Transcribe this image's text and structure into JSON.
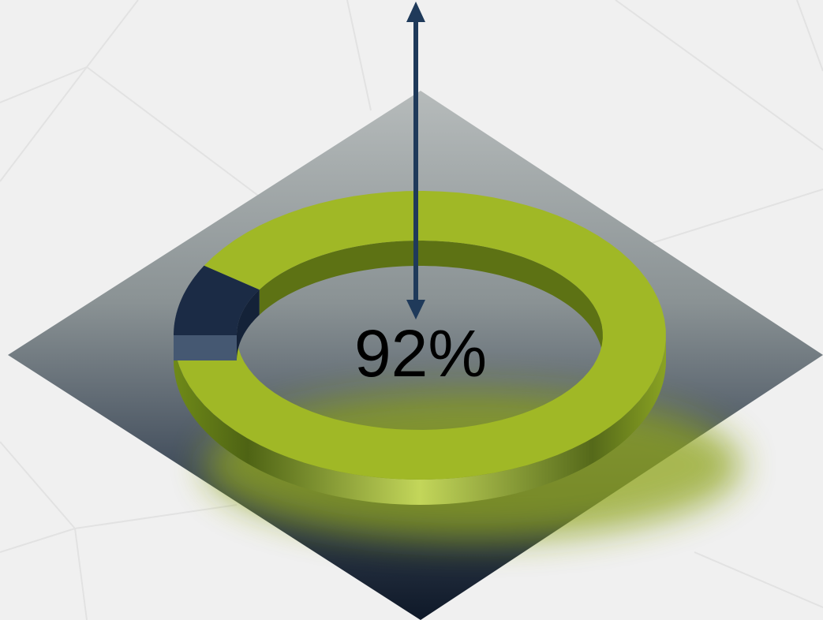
{
  "chart_data": {
    "type": "donut",
    "value": 92,
    "value_label": "92%",
    "color": "#a0b826",
    "rest_color": "#1b2b45"
  }
}
